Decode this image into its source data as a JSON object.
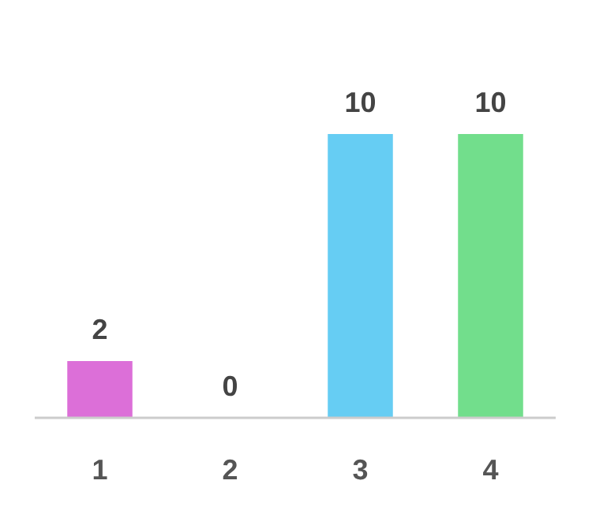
{
  "chart_data": {
    "type": "bar",
    "categories": [
      "1",
      "2",
      "3",
      "4"
    ],
    "values": [
      2,
      0,
      10,
      10
    ],
    "colors": [
      "#dc6fd8",
      "#e06fd8",
      "#66cdf3",
      "#72de8c"
    ],
    "data_labels": true
  }
}
